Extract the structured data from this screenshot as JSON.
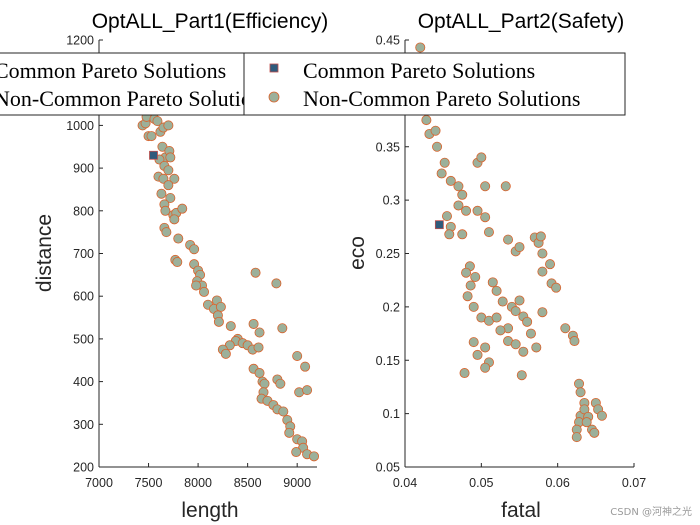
{
  "watermark": "CSDN @河神之光",
  "colors": {
    "common_fill": "#2f5b7c",
    "common_edge": "#c0504d",
    "noncommon_fill": "#9cb09a",
    "noncommon_edge": "#d9622b",
    "axis": "#262626"
  },
  "chart_data": [
    {
      "type": "scatter",
      "title": "OptALL_Part1(Efficiency)",
      "xlabel": "length",
      "ylabel": "distance",
      "xlim": [
        7000,
        9200
      ],
      "ylim": [
        200,
        1200
      ],
      "xticks": [
        7000,
        7500,
        8000,
        8500,
        9000
      ],
      "xtick_labels": [
        "7000",
        "7500",
        "8000",
        "8500",
        "9000"
      ],
      "yticks": [
        200,
        300,
        400,
        500,
        600,
        700,
        800,
        900,
        1000,
        1100,
        1200
      ],
      "ytick_labels": [
        "200",
        "300",
        "400",
        "500",
        "600",
        "700",
        "800",
        "900",
        "1000",
        "1100",
        "1200"
      ],
      "grid": false,
      "legend": {
        "placement": "top-left",
        "entries": [
          "Common Pareto Solutions",
          "Non-Common Pareto Solutions"
        ]
      },
      "series": [
        {
          "name": "Common Pareto Solutions",
          "marker": "square",
          "points": [
            [
              7550,
              930
            ]
          ]
        },
        {
          "name": "Non-Common Pareto Solutions",
          "marker": "circle",
          "points": [
            [
              7440,
              1000
            ],
            [
              7470,
              1005
            ],
            [
              7500,
              975
            ],
            [
              7530,
              975
            ],
            [
              7480,
              1020
            ],
            [
              7560,
              1015
            ],
            [
              7590,
              1010
            ],
            [
              7620,
              985
            ],
            [
              7650,
              995
            ],
            [
              7700,
              1000
            ],
            [
              7640,
              950
            ],
            [
              7670,
              925
            ],
            [
              7710,
              940
            ],
            [
              7720,
              925
            ],
            [
              7610,
              920
            ],
            [
              7660,
              905
            ],
            [
              7700,
              895
            ],
            [
              7600,
              880
            ],
            [
              7650,
              875
            ],
            [
              7760,
              875
            ],
            [
              7700,
              860
            ],
            [
              7630,
              840
            ],
            [
              7720,
              830
            ],
            [
              7660,
              815
            ],
            [
              7670,
              800
            ],
            [
              7750,
              790
            ],
            [
              7780,
              795
            ],
            [
              7840,
              805
            ],
            [
              7760,
              780
            ],
            [
              7660,
              760
            ],
            [
              7680,
              750
            ],
            [
              7800,
              735
            ],
            [
              7920,
              720
            ],
            [
              7960,
              710
            ],
            [
              7770,
              685
            ],
            [
              7790,
              680
            ],
            [
              7960,
              675
            ],
            [
              8000,
              660
            ],
            [
              8020,
              650
            ],
            [
              7990,
              635
            ],
            [
              8040,
              625
            ],
            [
              7980,
              625
            ],
            [
              8060,
              610
            ],
            [
              8100,
              580
            ],
            [
              8190,
              590
            ],
            [
              8160,
              570
            ],
            [
              8230,
              575
            ],
            [
              8200,
              555
            ],
            [
              8210,
              540
            ],
            [
              8330,
              530
            ],
            [
              8560,
              535
            ],
            [
              8620,
              515
            ],
            [
              8400,
              500
            ],
            [
              8380,
              495
            ],
            [
              8320,
              485
            ],
            [
              8250,
              475
            ],
            [
              8280,
              465
            ],
            [
              8450,
              490
            ],
            [
              8500,
              485
            ],
            [
              8550,
              475
            ],
            [
              8610,
              480
            ],
            [
              8560,
              430
            ],
            [
              8620,
              420
            ],
            [
              8650,
              400
            ],
            [
              8670,
              395
            ],
            [
              8660,
              375
            ],
            [
              8640,
              360
            ],
            [
              8700,
              355
            ],
            [
              8580,
              655
            ],
            [
              8790,
              630
            ],
            [
              8850,
              525
            ],
            [
              8800,
              405
            ],
            [
              8830,
              395
            ],
            [
              8760,
              345
            ],
            [
              8800,
              335
            ],
            [
              8860,
              330
            ],
            [
              8900,
              310
            ],
            [
              8930,
              295
            ],
            [
              8920,
              280
            ],
            [
              9000,
              460
            ],
            [
              9080,
              435
            ],
            [
              9020,
              375
            ],
            [
              9100,
              380
            ],
            [
              9000,
              265
            ],
            [
              9050,
              260
            ],
            [
              9060,
              245
            ],
            [
              8990,
              235
            ],
            [
              9100,
              230
            ],
            [
              9170,
              225
            ]
          ]
        }
      ]
    },
    {
      "type": "scatter",
      "title": "OptALL_Part2(Safety)",
      "xlabel": "fatal",
      "ylabel": "eco",
      "xlim": [
        0.04,
        0.07
      ],
      "ylim": [
        0.05,
        0.45
      ],
      "xticks": [
        0.04,
        0.05,
        0.06,
        0.07
      ],
      "xtick_labels": [
        "0.04",
        "0.05",
        "0.06",
        "0.07"
      ],
      "yticks": [
        0.05,
        0.1,
        0.15,
        0.2,
        0.25,
        0.3,
        0.35,
        0.4,
        0.45
      ],
      "ytick_labels": [
        "0.05",
        "0.1",
        "0.15",
        "0.2",
        "0.25",
        "0.3",
        "0.35",
        "0.4",
        "0.45"
      ],
      "grid": false,
      "legend": {
        "placement": "top",
        "entries": [
          "Common Pareto Solutions",
          "Non-Common Pareto Solutions"
        ]
      },
      "series": [
        {
          "name": "Common Pareto Solutions",
          "marker": "square",
          "points": [
            [
              0.0445,
              0.277
            ]
          ]
        },
        {
          "name": "Non-Common Pareto Solutions",
          "marker": "circle",
          "points": [
            [
              0.042,
              0.443
            ],
            [
              0.0428,
              0.375
            ],
            [
              0.0432,
              0.362
            ],
            [
              0.044,
              0.365
            ],
            [
              0.0442,
              0.35
            ],
            [
              0.0448,
              0.325
            ],
            [
              0.0452,
              0.335
            ],
            [
              0.046,
              0.318
            ],
            [
              0.047,
              0.313
            ],
            [
              0.047,
              0.295
            ],
            [
              0.0475,
              0.305
            ],
            [
              0.048,
              0.29
            ],
            [
              0.0455,
              0.285
            ],
            [
              0.046,
              0.275
            ],
            [
              0.0458,
              0.268
            ],
            [
              0.0475,
              0.268
            ],
            [
              0.0495,
              0.335
            ],
            [
              0.05,
              0.34
            ],
            [
              0.0505,
              0.313
            ],
            [
              0.0495,
              0.29
            ],
            [
              0.0505,
              0.284
            ],
            [
              0.051,
              0.27
            ],
            [
              0.0532,
              0.313
            ],
            [
              0.0535,
              0.263
            ],
            [
              0.0545,
              0.252
            ],
            [
              0.055,
              0.256
            ],
            [
              0.057,
              0.265
            ],
            [
              0.0575,
              0.26
            ],
            [
              0.0578,
              0.266
            ],
            [
              0.058,
              0.25
            ],
            [
              0.059,
              0.24
            ],
            [
              0.058,
              0.233
            ],
            [
              0.0592,
              0.222
            ],
            [
              0.0598,
              0.218
            ],
            [
              0.0485,
              0.238
            ],
            [
              0.048,
              0.232
            ],
            [
              0.0492,
              0.228
            ],
            [
              0.0486,
              0.22
            ],
            [
              0.0482,
              0.21
            ],
            [
              0.049,
              0.2
            ],
            [
              0.0515,
              0.223
            ],
            [
              0.052,
              0.215
            ],
            [
              0.0528,
              0.205
            ],
            [
              0.05,
              0.19
            ],
            [
              0.051,
              0.187
            ],
            [
              0.052,
              0.19
            ],
            [
              0.054,
              0.2
            ],
            [
              0.055,
              0.206
            ],
            [
              0.0535,
              0.18
            ],
            [
              0.0545,
              0.196
            ],
            [
              0.0555,
              0.191
            ],
            [
              0.049,
              0.167
            ],
            [
              0.0495,
              0.155
            ],
            [
              0.0505,
              0.162
            ],
            [
              0.051,
              0.148
            ],
            [
              0.0505,
              0.143
            ],
            [
              0.0478,
              0.138
            ],
            [
              0.0525,
              0.178
            ],
            [
              0.0535,
              0.168
            ],
            [
              0.0545,
              0.165
            ],
            [
              0.0555,
              0.158
            ],
            [
              0.0553,
              0.136
            ],
            [
              0.056,
              0.186
            ],
            [
              0.0565,
              0.175
            ],
            [
              0.0572,
              0.162
            ],
            [
              0.058,
              0.195
            ],
            [
              0.061,
              0.18
            ],
            [
              0.062,
              0.173
            ],
            [
              0.0622,
              0.168
            ],
            [
              0.0628,
              0.128
            ],
            [
              0.063,
              0.12
            ],
            [
              0.0635,
              0.11
            ],
            [
              0.063,
              0.098
            ],
            [
              0.0628,
              0.092
            ],
            [
              0.0625,
              0.085
            ],
            [
              0.0625,
              0.078
            ],
            [
              0.0635,
              0.104
            ],
            [
              0.0645,
              0.085
            ],
            [
              0.0648,
              0.082
            ],
            [
              0.065,
              0.11
            ],
            [
              0.0653,
              0.104
            ],
            [
              0.0658,
              0.098
            ],
            [
              0.064,
              0.097
            ],
            [
              0.0638,
              0.092
            ]
          ]
        }
      ]
    }
  ]
}
